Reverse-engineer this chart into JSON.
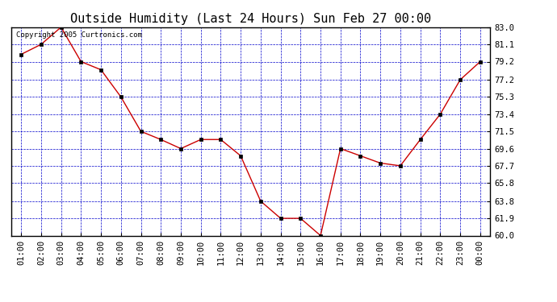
{
  "title": "Outside Humidity (Last 24 Hours) Sun Feb 27 00:00",
  "copyright": "Copyright 2005 Curtronics.com",
  "x_labels": [
    "01:00",
    "02:00",
    "03:00",
    "04:00",
    "05:00",
    "06:00",
    "07:00",
    "08:00",
    "09:00",
    "10:00",
    "11:00",
    "12:00",
    "13:00",
    "14:00",
    "15:00",
    "16:00",
    "17:00",
    "18:00",
    "19:00",
    "20:00",
    "21:00",
    "22:00",
    "23:00",
    "00:00"
  ],
  "y_values": [
    80.0,
    81.1,
    83.0,
    79.2,
    78.3,
    75.3,
    71.5,
    70.6,
    69.6,
    70.6,
    70.6,
    68.8,
    63.8,
    61.9,
    61.9,
    60.0,
    69.6,
    68.8,
    68.0,
    67.7,
    70.6,
    73.4,
    77.2,
    79.2
  ],
  "line_color": "#cc0000",
  "marker_color": "#000000",
  "bg_color": "#ffffff",
  "plot_bg_color": "#ffffff",
  "grid_color": "#0000cc",
  "axis_color": "#000000",
  "title_color": "#000000",
  "border_color": "#000000",
  "ylim": [
    60.0,
    83.0
  ],
  "yticks": [
    60.0,
    61.9,
    63.8,
    65.8,
    67.7,
    69.6,
    71.5,
    73.4,
    75.3,
    77.2,
    79.2,
    81.1,
    83.0
  ],
  "title_fontsize": 11,
  "tick_fontsize": 7.5,
  "copyright_fontsize": 6.5
}
